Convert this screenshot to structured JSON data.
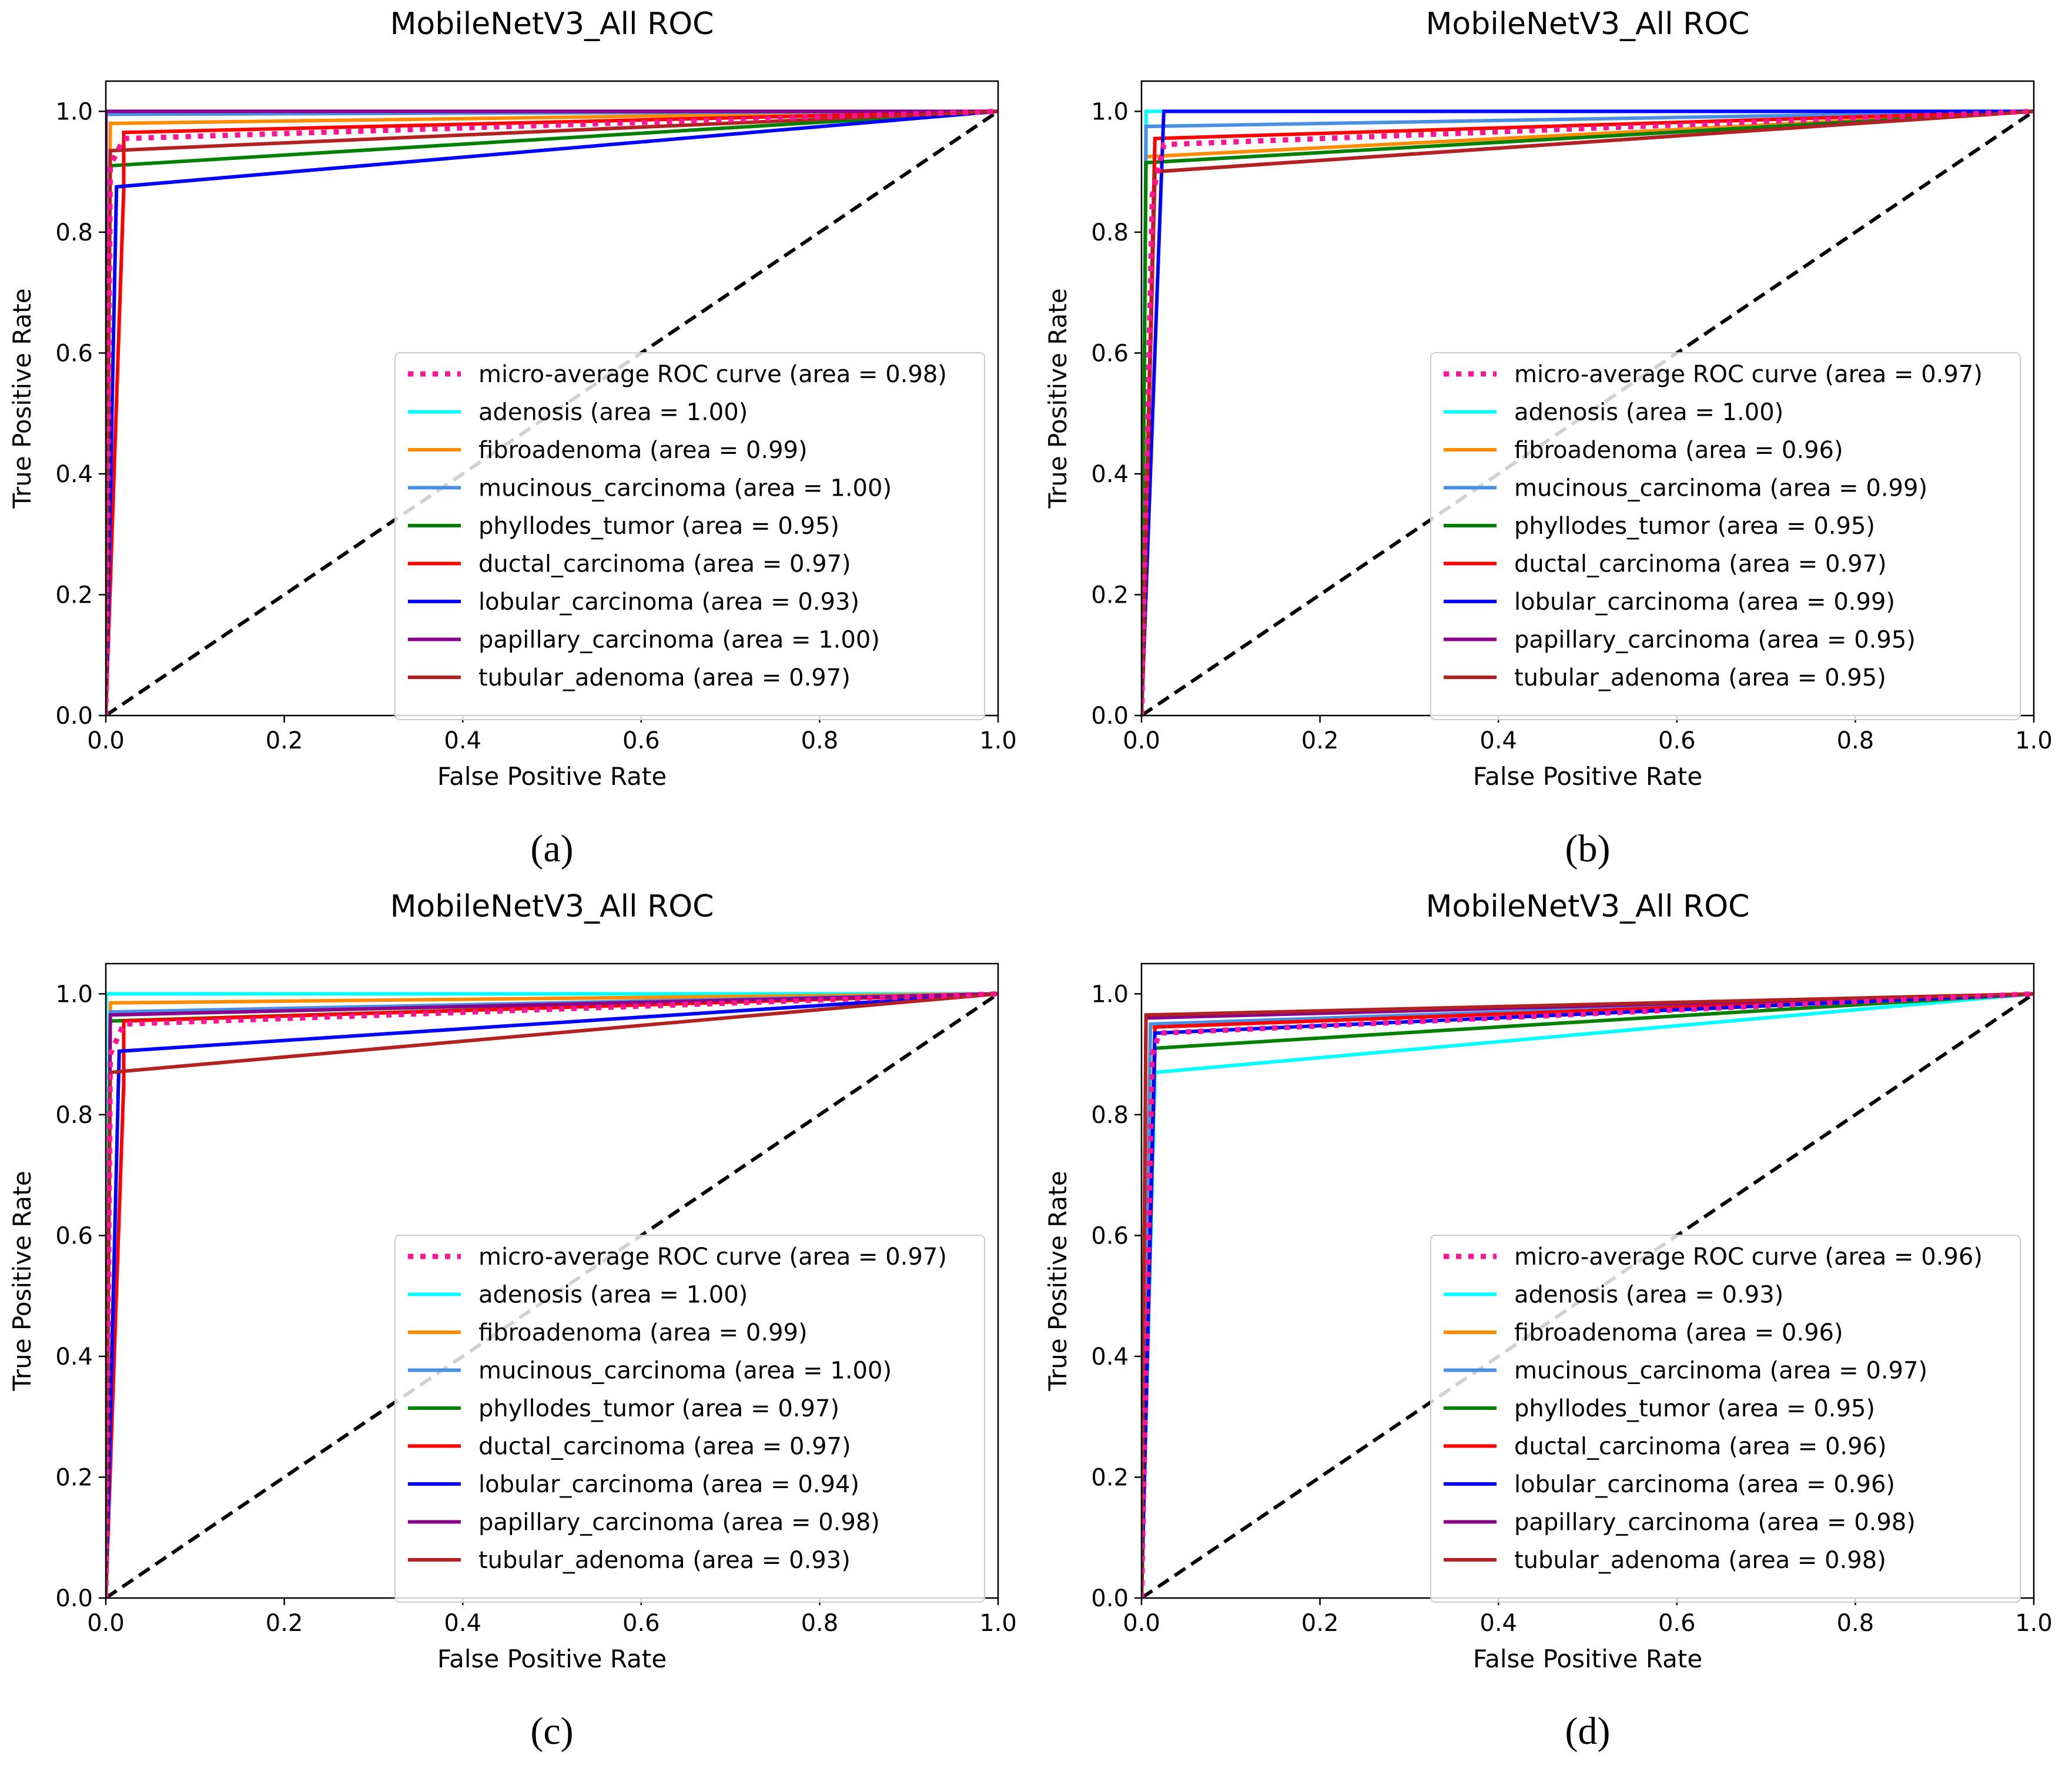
{
  "chart_data": [
    {
      "type": "line",
      "panel_label": "(a)",
      "title": "MobileNetV3_All ROC",
      "xlabel": "False Positive Rate",
      "ylabel": "True Positive Rate",
      "xlim": [
        0.0,
        1.0
      ],
      "ylim": [
        0.0,
        1.05
      ],
      "xticks": [
        "0.0",
        "0.2",
        "0.4",
        "0.6",
        "0.8",
        "1.0"
      ],
      "yticks": [
        "0.0",
        "0.2",
        "0.4",
        "0.6",
        "0.8",
        "1.0"
      ],
      "legend_position": "lower-right",
      "series": [
        {
          "name": "micro-average ROC curve (area = 0.98)",
          "color": "#ff1493",
          "style": "dotted",
          "x": [
            0,
            0.005,
            0.02,
            1.0
          ],
          "y": [
            0,
            0.91,
            0.955,
            1.0
          ]
        },
        {
          "name": "adenosis (area = 1.00)",
          "color": "#00ffff",
          "style": "solid",
          "x": [
            0,
            0,
            1.0
          ],
          "y": [
            0,
            1.0,
            1.0
          ]
        },
        {
          "name": "fibroadenoma (area = 0.99)",
          "color": "#ff8c00",
          "style": "solid",
          "x": [
            0,
            0.005,
            1.0
          ],
          "y": [
            0,
            0.98,
            1.0
          ]
        },
        {
          "name": "mucinous_carcinoma (area = 1.00)",
          "color": "#4a90e2",
          "style": "solid",
          "x": [
            0,
            0,
            1.0
          ],
          "y": [
            0,
            0.995,
            1.0
          ]
        },
        {
          "name": "phyllodes_tumor (area = 0.95)",
          "color": "#008000",
          "style": "solid",
          "x": [
            0,
            0.005,
            1.0
          ],
          "y": [
            0,
            0.91,
            1.0
          ]
        },
        {
          "name": "ductal_carcinoma (area = 0.97)",
          "color": "#ff0000",
          "style": "solid",
          "x": [
            0,
            0.02,
            0.02,
            1.0
          ],
          "y": [
            0,
            0.87,
            0.965,
            1.0
          ]
        },
        {
          "name": "lobular_carcinoma (area = 0.93)",
          "color": "#0000ff",
          "style": "solid",
          "x": [
            0,
            0.012,
            1.0
          ],
          "y": [
            0,
            0.875,
            1.0
          ]
        },
        {
          "name": "papillary_carcinoma (area = 1.00)",
          "color": "#8b008b",
          "style": "solid",
          "x": [
            0,
            0,
            1.0
          ],
          "y": [
            0,
            1.0,
            1.0
          ]
        },
        {
          "name": "tubular_adenoma (area = 0.97)",
          "color": "#b22222",
          "style": "solid",
          "x": [
            0,
            0.005,
            1.0
          ],
          "y": [
            0,
            0.935,
            1.0
          ]
        },
        {
          "name": "chance",
          "color": "#000000",
          "style": "dashed",
          "in_legend": false,
          "x": [
            0,
            1.0
          ],
          "y": [
            0,
            1.0
          ]
        }
      ]
    },
    {
      "type": "line",
      "panel_label": "(b)",
      "title": "MobileNetV3_All ROC",
      "xlabel": "False Positive Rate",
      "ylabel": "True Positive Rate",
      "xlim": [
        0.0,
        1.0
      ],
      "ylim": [
        0.0,
        1.05
      ],
      "xticks": [
        "0.0",
        "0.2",
        "0.4",
        "0.6",
        "0.8",
        "1.0"
      ],
      "yticks": [
        "0.0",
        "0.2",
        "0.4",
        "0.6",
        "0.8",
        "1.0"
      ],
      "legend_position": "lower-right",
      "series": [
        {
          "name": "micro-average ROC curve (area = 0.97)",
          "color": "#ff1493",
          "style": "dotted",
          "x": [
            0,
            0.012,
            0.025,
            1.0
          ],
          "y": [
            0,
            0.86,
            0.945,
            1.0
          ]
        },
        {
          "name": "adenosis (area = 1.00)",
          "color": "#00ffff",
          "style": "solid",
          "x": [
            0,
            0.005,
            0.005,
            1.0
          ],
          "y": [
            0,
            0.93,
            1.0,
            1.0
          ]
        },
        {
          "name": "fibroadenoma (area = 0.96)",
          "color": "#ff8c00",
          "style": "solid",
          "x": [
            0,
            0.005,
            1.0
          ],
          "y": [
            0,
            0.925,
            1.0
          ]
        },
        {
          "name": "mucinous_carcinoma (area = 0.99)",
          "color": "#4a90e2",
          "style": "solid",
          "x": [
            0,
            0.005,
            1.0
          ],
          "y": [
            0,
            0.975,
            1.0
          ]
        },
        {
          "name": "phyllodes_tumor (area = 0.95)",
          "color": "#008000",
          "style": "solid",
          "x": [
            0,
            0.005,
            1.0
          ],
          "y": [
            0,
            0.915,
            1.0
          ]
        },
        {
          "name": "ductal_carcinoma (area = 0.97)",
          "color": "#ff0000",
          "style": "solid",
          "x": [
            0,
            0.015,
            1.0
          ],
          "y": [
            0,
            0.955,
            1.0
          ]
        },
        {
          "name": "lobular_carcinoma (area = 0.99)",
          "color": "#0000ff",
          "style": "solid",
          "x": [
            0,
            0.025,
            1.0
          ],
          "y": [
            0,
            1.0,
            1.0
          ]
        },
        {
          "name": "papillary_carcinoma (area = 0.95)",
          "color": "#8b008b",
          "style": "solid",
          "x": [
            0,
            0.015,
            1.0
          ],
          "y": [
            0,
            0.9,
            1.0
          ]
        },
        {
          "name": "tubular_adenoma (area = 0.95)",
          "color": "#b22222",
          "style": "solid",
          "x": [
            0,
            0.015,
            1.0
          ],
          "y": [
            0,
            0.9,
            1.0
          ]
        },
        {
          "name": "chance",
          "color": "#000000",
          "style": "dashed",
          "in_legend": false,
          "x": [
            0,
            1.0
          ],
          "y": [
            0,
            1.0
          ]
        }
      ]
    },
    {
      "type": "line",
      "panel_label": "(c)",
      "title": "MobileNetV3_All ROC",
      "xlabel": "False Positive Rate",
      "ylabel": "True Positive Rate",
      "xlim": [
        0.0,
        1.0
      ],
      "ylim": [
        0.0,
        1.05
      ],
      "xticks": [
        "0.0",
        "0.2",
        "0.4",
        "0.6",
        "0.8",
        "1.0"
      ],
      "yticks": [
        "0.0",
        "0.2",
        "0.4",
        "0.6",
        "0.8",
        "1.0"
      ],
      "legend_position": "lower-right",
      "series": [
        {
          "name": "micro-average ROC curve (area = 0.97)",
          "color": "#ff1493",
          "style": "dotted",
          "x": [
            0,
            0.005,
            0.02,
            1.0
          ],
          "y": [
            0,
            0.9,
            0.95,
            1.0
          ]
        },
        {
          "name": "adenosis (area = 1.00)",
          "color": "#00ffff",
          "style": "solid",
          "x": [
            0,
            0,
            1.0
          ],
          "y": [
            0,
            1.0,
            1.0
          ]
        },
        {
          "name": "fibroadenoma (area = 0.99)",
          "color": "#ff8c00",
          "style": "solid",
          "x": [
            0,
            0.005,
            1.0
          ],
          "y": [
            0,
            0.985,
            1.0
          ]
        },
        {
          "name": "mucinous_carcinoma (area = 1.00)",
          "color": "#4a90e2",
          "style": "solid",
          "x": [
            0,
            0.005,
            1.0
          ],
          "y": [
            0,
            0.97,
            1.0
          ]
        },
        {
          "name": "phyllodes_tumor (area = 0.97)",
          "color": "#008000",
          "style": "solid",
          "x": [
            0,
            0.005,
            1.0
          ],
          "y": [
            0,
            0.955,
            1.0
          ]
        },
        {
          "name": "ductal_carcinoma (area = 0.97)",
          "color": "#ff0000",
          "style": "solid",
          "x": [
            0,
            0.02,
            0.02,
            1.0
          ],
          "y": [
            0,
            0.85,
            0.955,
            1.0
          ]
        },
        {
          "name": "lobular_carcinoma (area = 0.94)",
          "color": "#0000ff",
          "style": "solid",
          "x": [
            0,
            0.015,
            1.0
          ],
          "y": [
            0,
            0.905,
            1.0
          ]
        },
        {
          "name": "papillary_carcinoma (area = 0.98)",
          "color": "#8b008b",
          "style": "solid",
          "x": [
            0,
            0.005,
            1.0
          ],
          "y": [
            0,
            0.965,
            1.0
          ]
        },
        {
          "name": "tubular_adenoma (area = 0.93)",
          "color": "#b22222",
          "style": "solid",
          "x": [
            0,
            0.005,
            1.0
          ],
          "y": [
            0,
            0.87,
            1.0
          ]
        },
        {
          "name": "chance",
          "color": "#000000",
          "style": "dashed",
          "in_legend": false,
          "x": [
            0,
            1.0
          ],
          "y": [
            0,
            1.0
          ]
        }
      ]
    },
    {
      "type": "line",
      "panel_label": "(d)",
      "title": "MobileNetV3_All ROC",
      "xlabel": "False Positive Rate",
      "ylabel": "True Positive Rate",
      "xlim": [
        0.0,
        1.0
      ],
      "ylim": [
        0.0,
        1.05
      ],
      "xticks": [
        "0.0",
        "0.2",
        "0.4",
        "0.6",
        "0.8",
        "1.0"
      ],
      "yticks": [
        "0.0",
        "0.2",
        "0.4",
        "0.6",
        "0.8",
        "1.0"
      ],
      "legend_position": "lower-right",
      "series": [
        {
          "name": "micro-average ROC curve (area = 0.96)",
          "color": "#ff1493",
          "style": "dotted",
          "x": [
            0,
            0.012,
            0.02,
            1.0
          ],
          "y": [
            0,
            0.9,
            0.935,
            1.0
          ]
        },
        {
          "name": "adenosis (area = 0.93)",
          "color": "#00ffff",
          "style": "solid",
          "x": [
            0,
            0.015,
            1.0
          ],
          "y": [
            0,
            0.87,
            1.0
          ]
        },
        {
          "name": "fibroadenoma (area = 0.96)",
          "color": "#ff8c00",
          "style": "solid",
          "x": [
            0,
            0.01,
            1.0
          ],
          "y": [
            0,
            0.945,
            1.0
          ]
        },
        {
          "name": "mucinous_carcinoma (area = 0.97)",
          "color": "#4a90e2",
          "style": "solid",
          "x": [
            0,
            0.01,
            1.0
          ],
          "y": [
            0,
            0.95,
            1.0
          ]
        },
        {
          "name": "phyllodes_tumor (area = 0.95)",
          "color": "#008000",
          "style": "solid",
          "x": [
            0,
            0.015,
            1.0
          ],
          "y": [
            0,
            0.91,
            1.0
          ]
        },
        {
          "name": "ductal_carcinoma (area = 0.96)",
          "color": "#ff0000",
          "style": "solid",
          "x": [
            0,
            0.015,
            1.0
          ],
          "y": [
            0,
            0.945,
            1.0
          ]
        },
        {
          "name": "lobular_carcinoma (area = 0.96)",
          "color": "#0000ff",
          "style": "solid",
          "x": [
            0,
            0.015,
            1.0
          ],
          "y": [
            0,
            0.935,
            1.0
          ]
        },
        {
          "name": "papillary_carcinoma (area = 0.98)",
          "color": "#8b008b",
          "style": "solid",
          "x": [
            0,
            0.005,
            1.0
          ],
          "y": [
            0,
            0.96,
            1.0
          ]
        },
        {
          "name": "tubular_adenoma (area = 0.98)",
          "color": "#b22222",
          "style": "solid",
          "x": [
            0,
            0.005,
            1.0
          ],
          "y": [
            0,
            0.965,
            1.0
          ]
        },
        {
          "name": "chance",
          "color": "#000000",
          "style": "dashed",
          "in_legend": false,
          "x": [
            0,
            1.0
          ],
          "y": [
            0,
            1.0
          ]
        }
      ]
    }
  ]
}
